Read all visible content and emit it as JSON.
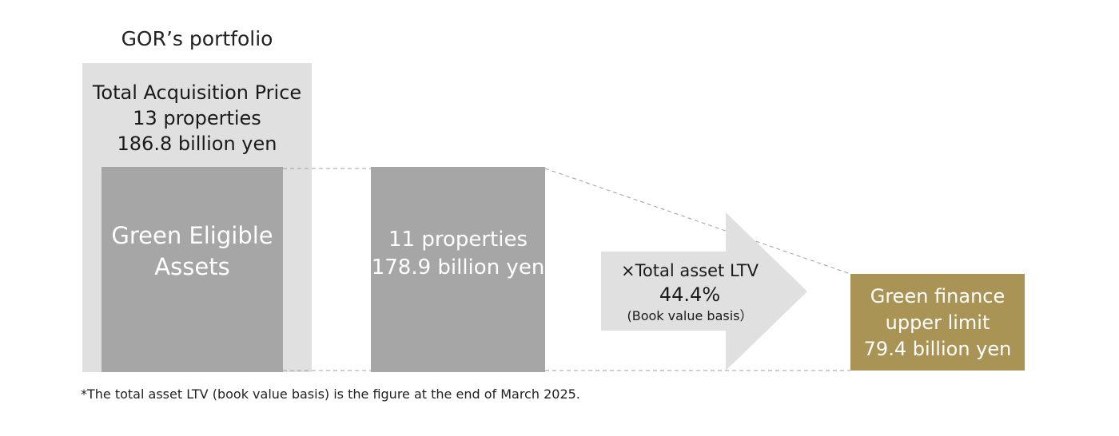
{
  "header": {
    "title": "GOR’s portfolio"
  },
  "portfolio": {
    "line1": "Total Acquisition Price",
    "line2": "13 properties",
    "line3": "186.8 billion yen"
  },
  "green_eligible": {
    "line1": "Green Eligible",
    "line2": "Assets"
  },
  "green_properties": {
    "line1": "11 properties",
    "line2": "178.9 billion yen"
  },
  "ltv": {
    "label": "×Total asset LTV",
    "value": "44.4%",
    "basis": "(Book value basis）"
  },
  "green_finance": {
    "line1": "Green finance",
    "line2": "upper limit",
    "line3": "79.4 billion yen"
  },
  "footnote": "*The total asset LTV (book value basis) is the figure at the end of March 2025.",
  "colors": {
    "light_gray": "#e0e0e0",
    "mid_gray": "#a6a6a6",
    "gold": "#a99456",
    "connector": "#a0a0a0"
  }
}
